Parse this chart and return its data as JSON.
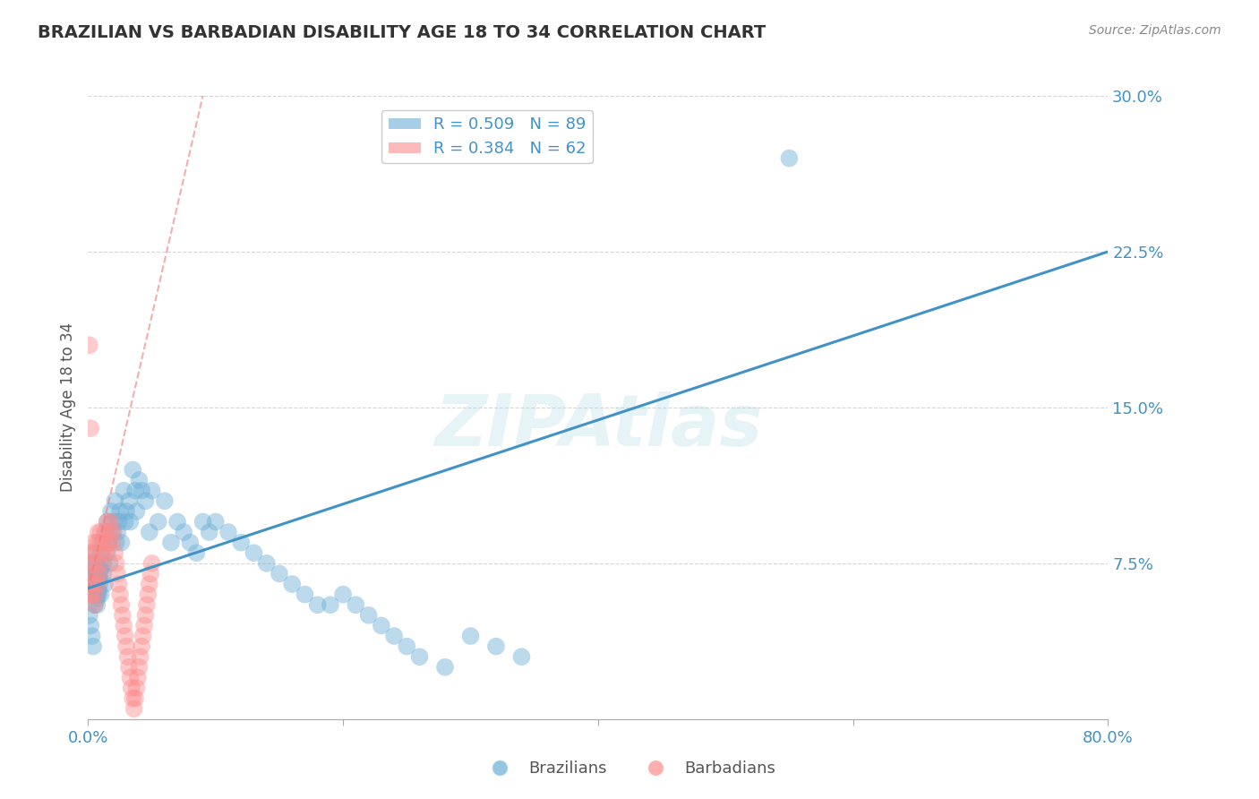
{
  "title": "BRAZILIAN VS BARBADIAN DISABILITY AGE 18 TO 34 CORRELATION CHART",
  "source": "Source: ZipAtlas.com",
  "ylabel": "Disability Age 18 to 34",
  "watermark": "ZIPAtlas",
  "xlim": [
    0.0,
    0.8
  ],
  "ylim": [
    0.0,
    0.3
  ],
  "xticks": [
    0.0,
    0.2,
    0.4,
    0.6,
    0.8
  ],
  "yticks": [
    0.0,
    0.075,
    0.15,
    0.225,
    0.3
  ],
  "ytick_labels": [
    "",
    "7.5%",
    "15.0%",
    "22.5%",
    "30.0%"
  ],
  "xtick_labels": [
    "0.0%",
    "",
    "",
    "",
    "80.0%"
  ],
  "background_color": "#ffffff",
  "grid_color": "#cccccc",
  "blue_color": "#6baed6",
  "pink_color": "#fc8d8d",
  "blue_line_color": "#4292c6",
  "pink_line_color": "#e87a7a",
  "legend_blue_label": "R = 0.509   N = 89",
  "legend_pink_label": "R = 0.384   N = 62",
  "legend_brazilians": "Brazilians",
  "legend_barbadians": "Barbadians",
  "axis_label_color": "#4292c6",
  "title_color": "#333333",
  "blue_trend_x0": 0.0,
  "blue_trend_y0": 0.063,
  "blue_trend_x1": 0.8,
  "blue_trend_y1": 0.225,
  "pink_trend_x0": 0.0,
  "pink_trend_y0": 0.062,
  "pink_trend_x1": 0.09,
  "pink_trend_y1": 0.3,
  "brazil_scatter_x": [
    0.001,
    0.002,
    0.003,
    0.003,
    0.004,
    0.005,
    0.005,
    0.006,
    0.006,
    0.007,
    0.007,
    0.008,
    0.008,
    0.009,
    0.009,
    0.01,
    0.01,
    0.011,
    0.012,
    0.012,
    0.013,
    0.014,
    0.015,
    0.015,
    0.016,
    0.017,
    0.018,
    0.019,
    0.02,
    0.021,
    0.022,
    0.023,
    0.024,
    0.025,
    0.026,
    0.028,
    0.029,
    0.03,
    0.032,
    0.033,
    0.035,
    0.037,
    0.038,
    0.04,
    0.042,
    0.045,
    0.048,
    0.05,
    0.055,
    0.06,
    0.065,
    0.07,
    0.075,
    0.08,
    0.085,
    0.09,
    0.095,
    0.1,
    0.11,
    0.12,
    0.13,
    0.14,
    0.15,
    0.16,
    0.17,
    0.18,
    0.19,
    0.2,
    0.21,
    0.22,
    0.23,
    0.24,
    0.25,
    0.26,
    0.28,
    0.3,
    0.32,
    0.34,
    0.55,
    0.001,
    0.002,
    0.003,
    0.004,
    0.005,
    0.006,
    0.007,
    0.008,
    0.009,
    0.01
  ],
  "brazil_scatter_y": [
    0.075,
    0.08,
    0.07,
    0.065,
    0.068,
    0.072,
    0.06,
    0.075,
    0.065,
    0.07,
    0.055,
    0.068,
    0.06,
    0.072,
    0.065,
    0.08,
    0.06,
    0.085,
    0.07,
    0.075,
    0.065,
    0.09,
    0.08,
    0.095,
    0.085,
    0.075,
    0.1,
    0.09,
    0.095,
    0.105,
    0.085,
    0.09,
    0.095,
    0.1,
    0.085,
    0.11,
    0.095,
    0.1,
    0.105,
    0.095,
    0.12,
    0.11,
    0.1,
    0.115,
    0.11,
    0.105,
    0.09,
    0.11,
    0.095,
    0.105,
    0.085,
    0.095,
    0.09,
    0.085,
    0.08,
    0.095,
    0.09,
    0.095,
    0.09,
    0.085,
    0.08,
    0.075,
    0.07,
    0.065,
    0.06,
    0.055,
    0.055,
    0.06,
    0.055,
    0.05,
    0.045,
    0.04,
    0.035,
    0.03,
    0.025,
    0.04,
    0.035,
    0.03,
    0.27,
    0.05,
    0.045,
    0.04,
    0.035,
    0.055,
    0.06,
    0.058,
    0.062,
    0.068,
    0.072
  ],
  "barbados_scatter_x": [
    0.001,
    0.001,
    0.002,
    0.002,
    0.003,
    0.003,
    0.004,
    0.004,
    0.005,
    0.005,
    0.006,
    0.006,
    0.007,
    0.007,
    0.008,
    0.008,
    0.009,
    0.009,
    0.01,
    0.01,
    0.011,
    0.012,
    0.013,
    0.014,
    0.015,
    0.016,
    0.017,
    0.018,
    0.019,
    0.02,
    0.021,
    0.022,
    0.023,
    0.024,
    0.025,
    0.026,
    0.027,
    0.028,
    0.029,
    0.03,
    0.031,
    0.032,
    0.033,
    0.034,
    0.035,
    0.036,
    0.037,
    0.038,
    0.039,
    0.04,
    0.041,
    0.042,
    0.043,
    0.044,
    0.045,
    0.046,
    0.047,
    0.048,
    0.049,
    0.05,
    0.001,
    0.002
  ],
  "barbados_scatter_y": [
    0.07,
    0.06,
    0.075,
    0.065,
    0.08,
    0.06,
    0.085,
    0.065,
    0.075,
    0.055,
    0.08,
    0.06,
    0.085,
    0.07,
    0.09,
    0.065,
    0.085,
    0.07,
    0.09,
    0.075,
    0.08,
    0.085,
    0.09,
    0.08,
    0.095,
    0.085,
    0.09,
    0.095,
    0.085,
    0.09,
    0.08,
    0.075,
    0.07,
    0.065,
    0.06,
    0.055,
    0.05,
    0.045,
    0.04,
    0.035,
    0.03,
    0.025,
    0.02,
    0.015,
    0.01,
    0.005,
    0.01,
    0.015,
    0.02,
    0.025,
    0.03,
    0.035,
    0.04,
    0.045,
    0.05,
    0.055,
    0.06,
    0.065,
    0.07,
    0.075,
    0.18,
    0.14
  ]
}
